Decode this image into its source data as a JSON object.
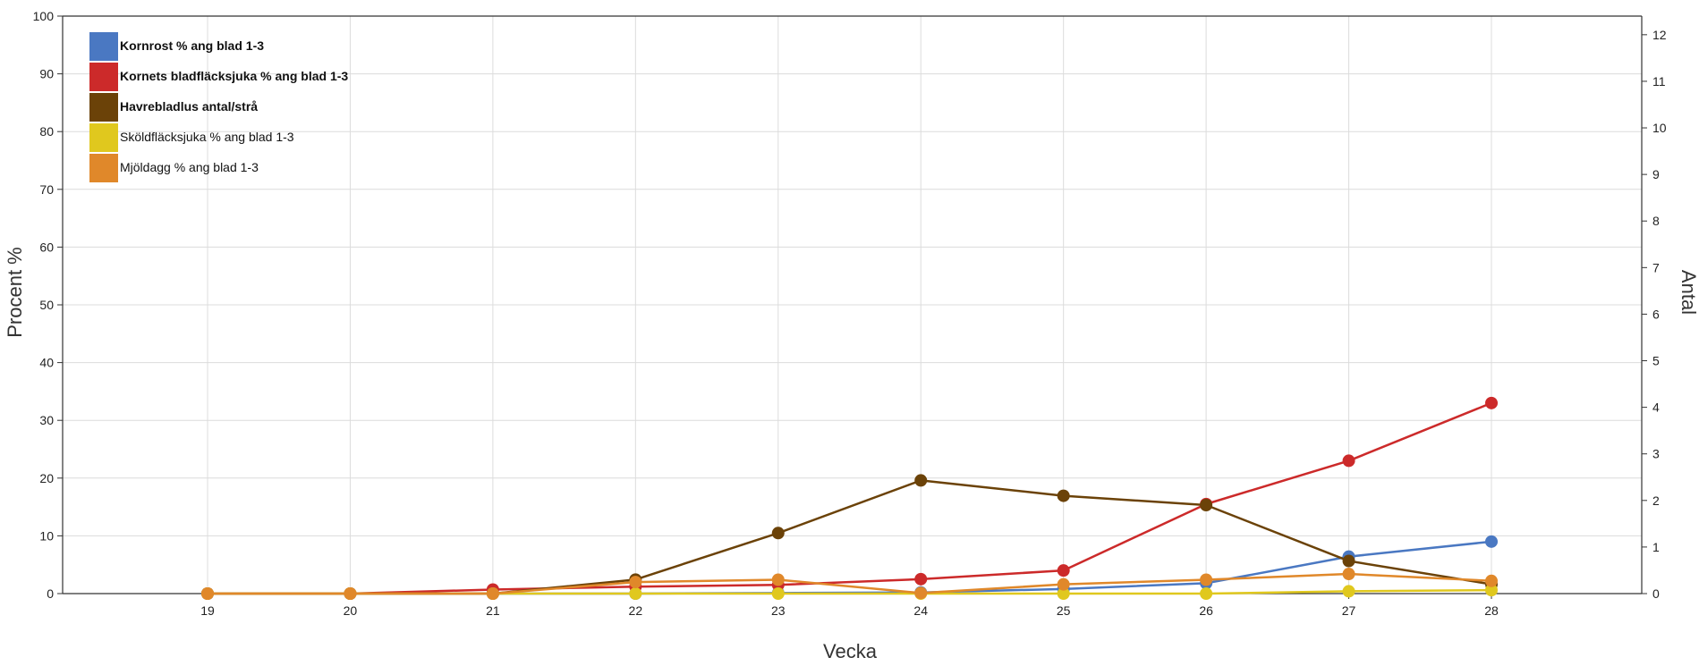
{
  "chart_data": {
    "type": "line",
    "xlabel": "Vecka",
    "ylabel_left": "Procent %",
    "ylabel_right": "Antal",
    "x": [
      19,
      20,
      21,
      22,
      23,
      24,
      25,
      26,
      27,
      28
    ],
    "ylim_left": [
      0,
      100
    ],
    "yticks_left": [
      0,
      10,
      20,
      30,
      40,
      50,
      60,
      70,
      80,
      90,
      100
    ],
    "ylim_right": [
      0,
      12.4
    ],
    "yticks_right": [
      0,
      1,
      2,
      3,
      4,
      5,
      6,
      7,
      8,
      9,
      10,
      11,
      12
    ],
    "grid": true,
    "legend_position": "top-left",
    "series": [
      {
        "name": "Kornrost % ang blad 1-3",
        "axis": "left",
        "color": "#4a78c2",
        "bold": true,
        "values": [
          0,
          0,
          0,
          0,
          0.1,
          0.2,
          0.8,
          1.8,
          6.4,
          9.0
        ]
      },
      {
        "name": "Kornets bladfläcksjuka % ang blad 1-3",
        "axis": "left",
        "color": "#cc2a2a",
        "bold": true,
        "values": [
          0,
          0,
          0.7,
          1.2,
          1.5,
          2.5,
          4.0,
          15.5,
          23.0,
          33.0
        ]
      },
      {
        "name": "Havrebladlus antal/strå",
        "axis": "right",
        "color": "#6b4208",
        "bold": true,
        "values": [
          0,
          0,
          0,
          0.3,
          1.3,
          2.43,
          2.1,
          1.9,
          0.7,
          0.2
        ]
      },
      {
        "name": "Sköldfläcksjuka % ang blad 1-3",
        "axis": "left",
        "color": "#e0c81e",
        "bold": false,
        "values": [
          0,
          0,
          0,
          0,
          0,
          0,
          0,
          0,
          0.4,
          0.6
        ]
      },
      {
        "name": "Mjöldagg % ang blad 1-3",
        "axis": "left",
        "color": "#e0882a",
        "bold": false,
        "values": [
          0,
          0,
          0,
          2.0,
          2.4,
          0.1,
          1.6,
          2.4,
          3.4,
          2.2
        ]
      }
    ]
  }
}
